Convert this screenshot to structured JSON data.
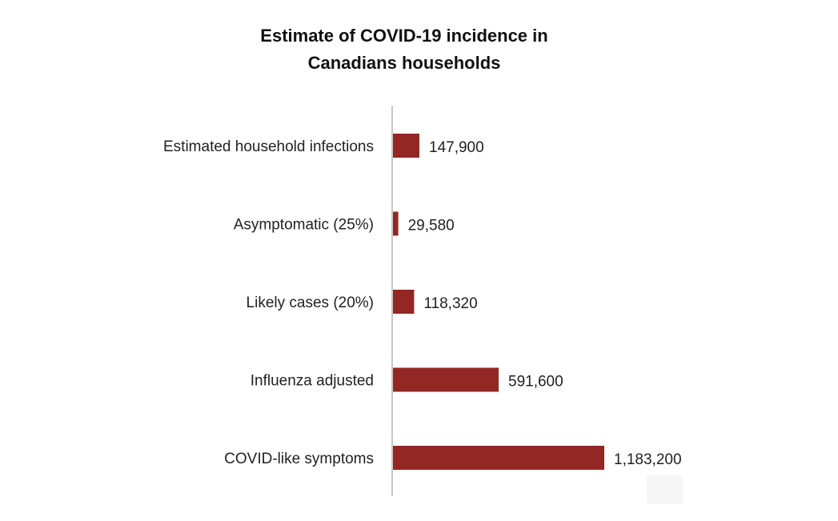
{
  "chart_data": {
    "type": "bar",
    "orientation": "horizontal",
    "title_lines": [
      "Estimate of COVID-19 incidence in",
      "Canadians households"
    ],
    "categories": [
      "Estimated household infections",
      "Asymptomatic (25%)",
      "Likely cases (20%)",
      "Influenza adjusted",
      "COVID-like symptoms"
    ],
    "values": [
      147900,
      29580,
      118320,
      591600,
      1183200
    ],
    "data_labels": [
      "147,900",
      "29,580",
      "118,320",
      "591,600",
      "1,183,200"
    ],
    "xlim": [
      0,
      1183200
    ],
    "bar_color": "#922724",
    "axis_color": "#c8c8c8",
    "grid": false,
    "legend": "none"
  }
}
